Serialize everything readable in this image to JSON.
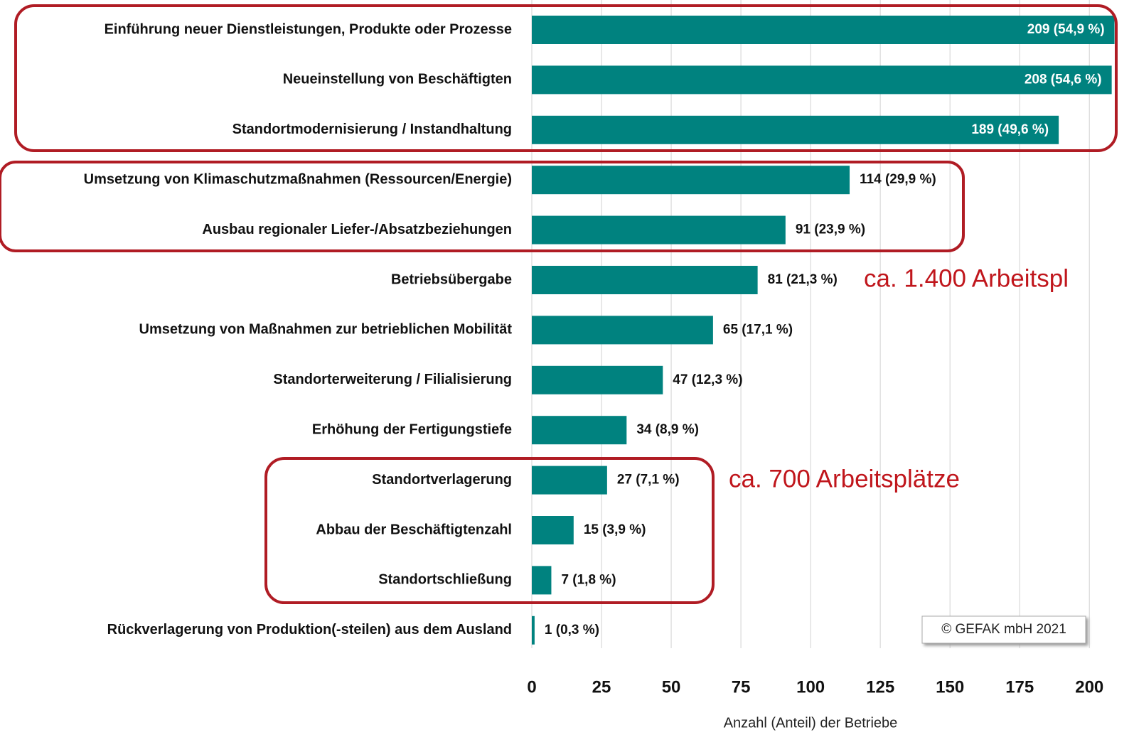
{
  "chart_data": {
    "type": "bar",
    "orientation": "horizontal",
    "categories": [
      "Einführung neuer Dienstleistungen, Produkte oder Prozesse",
      "Neueinstellung von Beschäftigten",
      "Standortmodernisierung / Instandhaltung",
      "Umsetzung von Klimaschutzmaßnahmen (Ressourcen/Energie)",
      "Ausbau regionaler Liefer-/Absatzbeziehungen",
      "Betriebsübergabe",
      "Umsetzung von Maßnahmen zur betrieblichen Mobilität",
      "Standorterweiterung / Filialisierung",
      "Erhöhung der Fertigungstiefe",
      "Standortverlagerung",
      "Abbau der Beschäftigtenzahl",
      "Standortschließung",
      "Rückverlagerung von Produktion(-steilen) aus dem Ausland"
    ],
    "values": [
      209,
      208,
      189,
      114,
      91,
      81,
      65,
      47,
      34,
      27,
      15,
      7,
      1
    ],
    "value_labels": [
      "209 (54,9 %)",
      "208 (54,6 %)",
      "189 (49,6 %)",
      "114 (29,9 %)",
      "91 (23,9 %)",
      "81 (21,3 %)",
      "65 (17,1 %)",
      "47 (12,3 %)",
      "34 (8,9 %)",
      "27 (7,1 %)",
      "15 (3,9 %)",
      "7 (1,8 %)",
      "1 (0,3 %)"
    ],
    "color": "#00827f",
    "xlim": [
      0,
      216
    ],
    "xticks": [
      0,
      25,
      50,
      75,
      100,
      125,
      150,
      175,
      200
    ],
    "grid": true,
    "xlabel": "Anzahl (Anteil) der Betriebe",
    "annotations": [
      "ca. 1.400 Arbeitspl",
      "ca. 700 Arbeitsplätze"
    ],
    "copyright": "© GEFAK mbH 2021"
  }
}
